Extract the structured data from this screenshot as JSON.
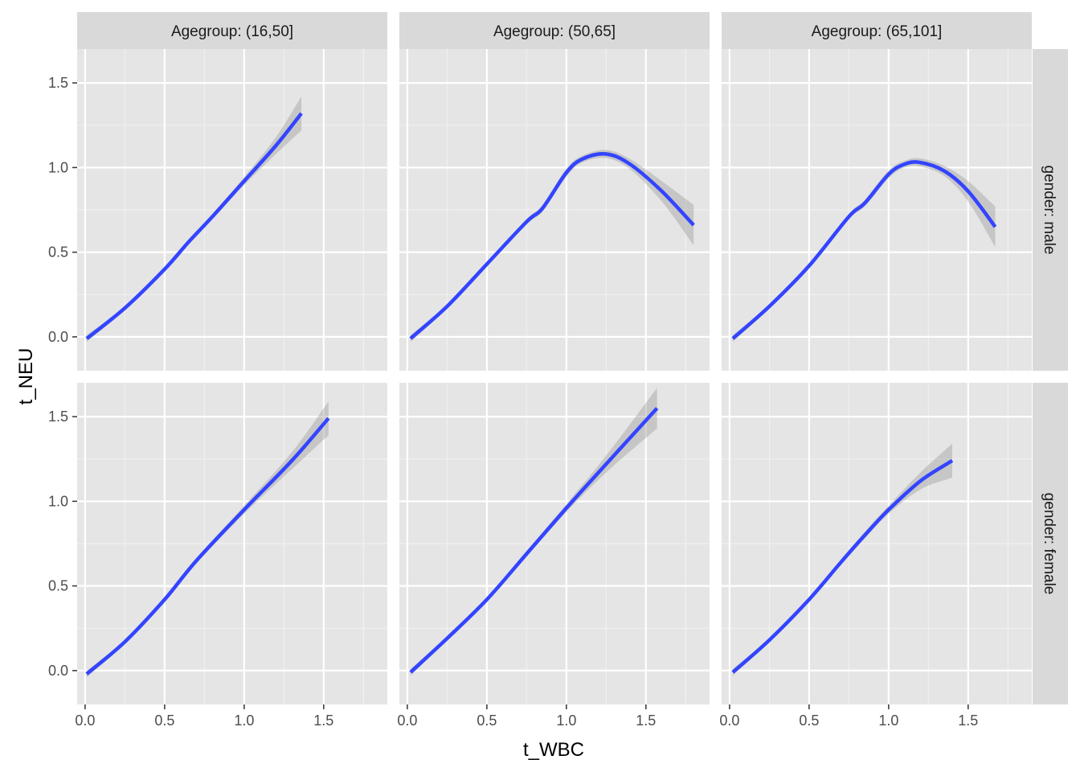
{
  "chart_data": {
    "type": "line",
    "xlabel": "t_WBC",
    "ylabel": "t_NEU",
    "xlim": [
      -0.05,
      1.9
    ],
    "ylim": [
      -0.2,
      1.7
    ],
    "x_ticks": [
      "0.0",
      "0.5",
      "1.0",
      "1.5"
    ],
    "y_ticks": [
      "0.0",
      "0.5",
      "1.0",
      "1.5"
    ],
    "grid": true,
    "line_color": "#3344ff",
    "ribbon_color": "#999999",
    "panel_background": "#e5e5e5",
    "strip_background": "#d9d9d9",
    "columns": [
      "Agegroup: (16,50]",
      "Agegroup: (50,65]",
      "Agegroup: (65,101]"
    ],
    "rows": [
      "gender: male",
      "gender: female"
    ],
    "panels": [
      {
        "row": 0,
        "col": 0,
        "x": [
          0.01,
          0.25,
          0.5,
          0.65,
          0.8,
          1.0,
          1.2,
          1.36
        ],
        "y": [
          -0.01,
          0.17,
          0.4,
          0.56,
          0.71,
          0.92,
          1.13,
          1.32
        ],
        "se": [
          0.01,
          0.006,
          0.005,
          0.006,
          0.008,
          0.012,
          0.025,
          0.05
        ]
      },
      {
        "row": 0,
        "col": 1,
        "x": [
          0.02,
          0.25,
          0.5,
          0.75,
          0.85,
          1.0,
          1.1,
          1.25,
          1.4,
          1.6,
          1.8
        ],
        "y": [
          -0.01,
          0.18,
          0.43,
          0.68,
          0.76,
          0.97,
          1.05,
          1.08,
          1.02,
          0.86,
          0.66
        ],
        "se": [
          0.01,
          0.006,
          0.006,
          0.008,
          0.01,
          0.012,
          0.01,
          0.012,
          0.015,
          0.03,
          0.06
        ]
      },
      {
        "row": 0,
        "col": 2,
        "x": [
          0.02,
          0.25,
          0.5,
          0.75,
          0.85,
          1.0,
          1.1,
          1.2,
          1.35,
          1.5,
          1.67
        ],
        "y": [
          -0.01,
          0.18,
          0.42,
          0.71,
          0.79,
          0.96,
          1.02,
          1.03,
          0.98,
          0.86,
          0.65
        ],
        "se": [
          0.01,
          0.006,
          0.006,
          0.008,
          0.01,
          0.012,
          0.01,
          0.012,
          0.015,
          0.03,
          0.06
        ]
      },
      {
        "row": 1,
        "col": 0,
        "x": [
          0.01,
          0.25,
          0.5,
          0.7,
          1.0,
          1.3,
          1.53
        ],
        "y": [
          -0.02,
          0.17,
          0.42,
          0.65,
          0.95,
          1.24,
          1.49
        ],
        "se": [
          0.01,
          0.006,
          0.006,
          0.008,
          0.012,
          0.025,
          0.05
        ]
      },
      {
        "row": 1,
        "col": 1,
        "x": [
          0.02,
          0.25,
          0.5,
          0.75,
          1.0,
          1.25,
          1.57
        ],
        "y": [
          -0.01,
          0.19,
          0.42,
          0.69,
          0.96,
          1.22,
          1.55
        ],
        "se": [
          0.01,
          0.006,
          0.006,
          0.008,
          0.012,
          0.025,
          0.06
        ]
      },
      {
        "row": 1,
        "col": 2,
        "x": [
          0.02,
          0.25,
          0.5,
          0.7,
          0.85,
          1.0,
          1.2,
          1.4
        ],
        "y": [
          -0.01,
          0.18,
          0.42,
          0.64,
          0.8,
          0.95,
          1.12,
          1.24
        ],
        "se": [
          0.01,
          0.006,
          0.006,
          0.008,
          0.01,
          0.012,
          0.025,
          0.05
        ]
      }
    ]
  }
}
